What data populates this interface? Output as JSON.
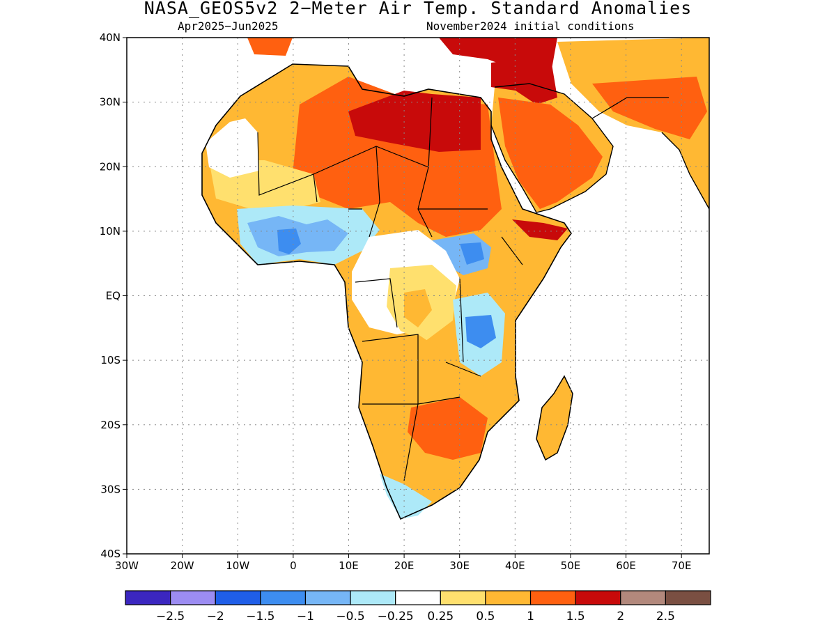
{
  "title": "NASA_GEOS5v2 2−Meter Air Temp. Standard Anomalies",
  "subtitle_left": "Apr2025−Jun2025",
  "subtitle_right": "November2024 initial conditions",
  "map": {
    "lon_range": [
      -30,
      75
    ],
    "lat_range": [
      -40,
      40
    ],
    "lat_ticks": [
      "40N",
      "30N",
      "20N",
      "10N",
      "EQ",
      "10S",
      "20S",
      "30S",
      "40S"
    ],
    "lon_ticks": [
      "30W",
      "20W",
      "10W",
      "0",
      "10E",
      "20E",
      "30E",
      "40E",
      "50E",
      "60E",
      "70E"
    ],
    "grid": "dotted"
  },
  "colorbar": {
    "colors": [
      "#3b26c0",
      "#9c8cf2",
      "#1f5ee8",
      "#3d8df0",
      "#76b6f6",
      "#ade9f8",
      "#ffffff",
      "#ffe06e",
      "#ffb833",
      "#ff6010",
      "#c80a0a",
      "#b2887c",
      "#7a4f42"
    ],
    "labels": [
      "−2.5",
      "−2",
      "−1.5",
      "−1",
      "−0.5",
      "−0.25",
      "0.25",
      "0.5",
      "1",
      "1.5",
      "2",
      "2.5"
    ]
  }
}
